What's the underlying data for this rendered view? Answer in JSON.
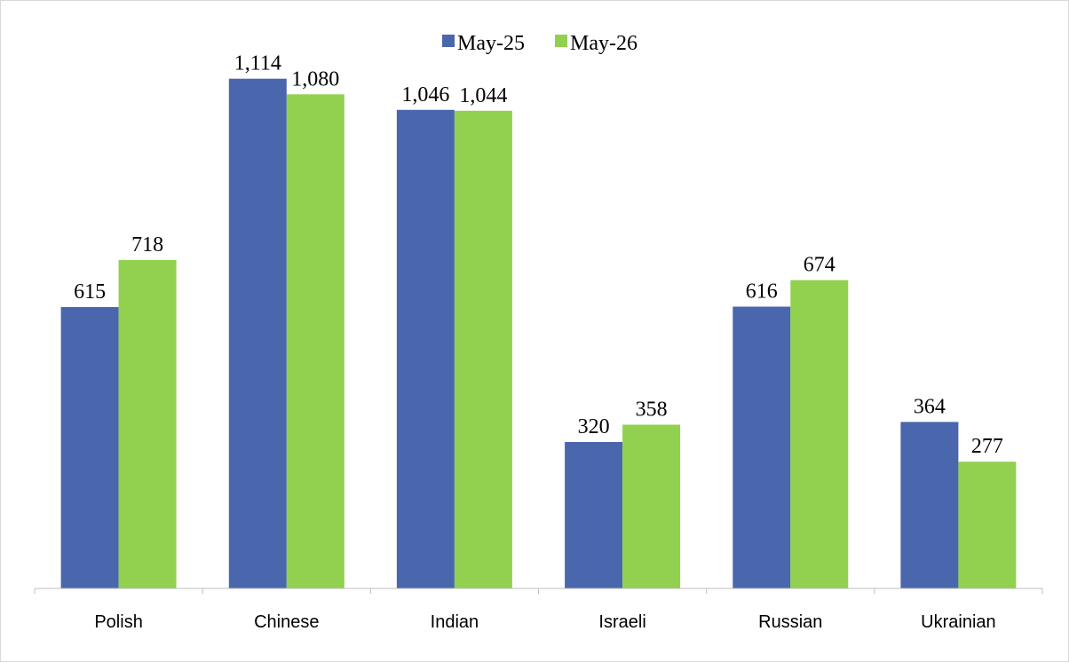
{
  "chart_data": {
    "type": "bar",
    "categories": [
      "Polish",
      "Chinese",
      "Indian",
      "Israeli",
      "Russian",
      "Ukrainian"
    ],
    "series": [
      {
        "name": "May-25",
        "color": "#4a66ac",
        "values": [
          615,
          1114,
          1046,
          320,
          616,
          364
        ],
        "labels": [
          "615",
          "1,114",
          "1,046",
          "320",
          "616",
          "364"
        ]
      },
      {
        "name": "May-26",
        "color": "#92d050",
        "values": [
          718,
          1080,
          1044,
          358,
          674,
          277
        ],
        "labels": [
          "718",
          "1,080",
          "1,044",
          "358",
          "674",
          "277"
        ]
      }
    ],
    "title": "",
    "xlabel": "",
    "ylabel": "",
    "ylim": [
      0,
      1250
    ],
    "grid": false,
    "legend_position": "top-center",
    "y_axis_visible": false
  }
}
